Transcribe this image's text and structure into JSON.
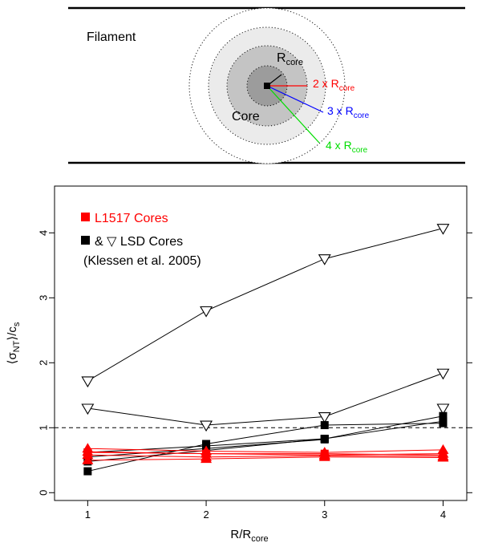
{
  "diagram": {
    "filament_label": "Filament",
    "core_label": "Core",
    "rcore_label": {
      "main": "R",
      "sub": "core"
    },
    "radius_labels": [
      {
        "prefix": "2 x R",
        "sub": "core",
        "color": "#ff0000"
      },
      {
        "prefix": "3 x R",
        "sub": "core",
        "color": "#0000ff"
      },
      {
        "prefix": "4 x R",
        "sub": "core",
        "color": "#00dd00"
      }
    ]
  },
  "chart_data": {
    "type": "scatter",
    "xlabel": {
      "main": "R/R",
      "sub": "core"
    },
    "ylabel": {
      "pre": "⟨σ",
      "sub": "NT",
      "mid": "⟩/c",
      "sub2": "s"
    },
    "xlim": [
      0.72,
      4.2
    ],
    "ylim": [
      -0.12,
      4.72
    ],
    "x_ticks": [
      1,
      2,
      3,
      4
    ],
    "y_ticks": [
      0,
      1,
      2,
      3,
      4
    ],
    "reference_line": {
      "y": 1,
      "style": "dashed"
    },
    "legend": {
      "position": "top-left",
      "entries": [
        {
          "text": "L1517 Cores",
          "color": "#ff0000",
          "marker": "square-filled"
        },
        {
          "text": "& ▽  LSD Cores",
          "color": "#000000",
          "marker": "square-filled"
        },
        {
          "text": "(Klessen et al. 2005)",
          "color": "#000000",
          "marker": "none"
        }
      ]
    },
    "series": [
      {
        "group": "LSD-triangles",
        "color": "#000000",
        "marker": "triangle-down-open",
        "x": [
          1,
          2,
          3,
          4
        ],
        "y": [
          1.72,
          2.8,
          3.6,
          4.07
        ]
      },
      {
        "group": "LSD-triangles",
        "color": "#000000",
        "marker": "triangle-down-open",
        "x": [
          1,
          2,
          3,
          4
        ],
        "y": [
          1.3,
          1.04,
          1.17,
          1.84
        ]
      },
      {
        "group": "LSD-squares",
        "color": "#000000",
        "marker": "triangle-down-open",
        "x": [
          4
        ],
        "y": [
          1.3
        ]
      },
      {
        "group": "LSD-squares",
        "color": "#000000",
        "marker": "square-filled",
        "x": [
          1,
          2,
          3,
          4
        ],
        "y": [
          0.33,
          0.75,
          1.04,
          1.07
        ]
      },
      {
        "group": "LSD-squares",
        "color": "#000000",
        "marker": "square-filled",
        "x": [
          1,
          2,
          3,
          4
        ],
        "y": [
          0.48,
          0.65,
          0.83,
          1.18
        ]
      },
      {
        "group": "LSD-squares",
        "color": "#000000",
        "marker": "square-filled",
        "x": [
          1,
          2,
          3,
          4
        ],
        "y": [
          0.62,
          0.72,
          0.83,
          1.1
        ]
      },
      {
        "group": "LSD-squares",
        "color": "#000000",
        "marker": "square-filled",
        "x": [
          1,
          2,
          3
        ],
        "y": [
          0.55,
          0.68,
          0.82
        ]
      },
      {
        "group": "L1517",
        "color": "#ff0000",
        "marker": "triangle-up-filled",
        "x": [
          1,
          2,
          3,
          4
        ],
        "y": [
          0.68,
          0.64,
          0.62,
          0.66
        ]
      },
      {
        "group": "L1517",
        "color": "#ff0000",
        "marker": "triangle-up-filled",
        "x": [
          1,
          2,
          3,
          4
        ],
        "y": [
          0.63,
          0.6,
          0.58,
          0.6
        ]
      },
      {
        "group": "L1517",
        "color": "#ff0000",
        "marker": "triangle-up-filled",
        "x": [
          1,
          2,
          3,
          4
        ],
        "y": [
          0.58,
          0.55,
          0.57,
          0.56
        ]
      },
      {
        "group": "L1517",
        "color": "#ff0000",
        "marker": "triangle-up-filled",
        "x": [
          1,
          2,
          3,
          4
        ],
        "y": [
          0.5,
          0.52,
          0.55,
          0.54
        ]
      },
      {
        "group": "L1517",
        "color": "#ff0000",
        "marker": "square-filled",
        "x": [
          1,
          2,
          3,
          4
        ],
        "y": [
          0.62,
          0.6,
          0.6,
          0.58
        ]
      }
    ]
  }
}
